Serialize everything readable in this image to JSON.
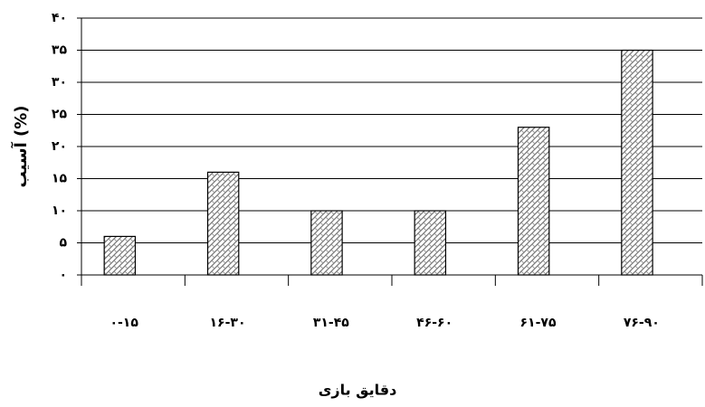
{
  "chart_data": {
    "type": "bar",
    "x_label": "دقایق بازی",
    "y_label": "آسیب (%)",
    "categories": [
      "۰-۱۵",
      "۱۶-۳۰",
      "۳۱-۴۵",
      "۴۶-۶۰",
      "۶۱-۷۵",
      "۷۶-۹۰"
    ],
    "values": [
      6,
      16,
      10,
      10,
      23,
      35
    ],
    "color": "#b0b0b0",
    "ylim": [
      0,
      40
    ],
    "yticks": [
      {
        "value": 0,
        "label": "۰"
      },
      {
        "value": 5,
        "label": "۵"
      },
      {
        "value": 10,
        "label": "۱۰"
      },
      {
        "value": 15,
        "label": "۱۵"
      },
      {
        "value": 20,
        "label": "۲۰"
      },
      {
        "value": 25,
        "label": "۲۵"
      },
      {
        "value": 30,
        "label": "۳۰"
      },
      {
        "value": 35,
        "label": "۳۵"
      },
      {
        "value": 40,
        "label": "۴۰"
      }
    ],
    "grid": true
  }
}
